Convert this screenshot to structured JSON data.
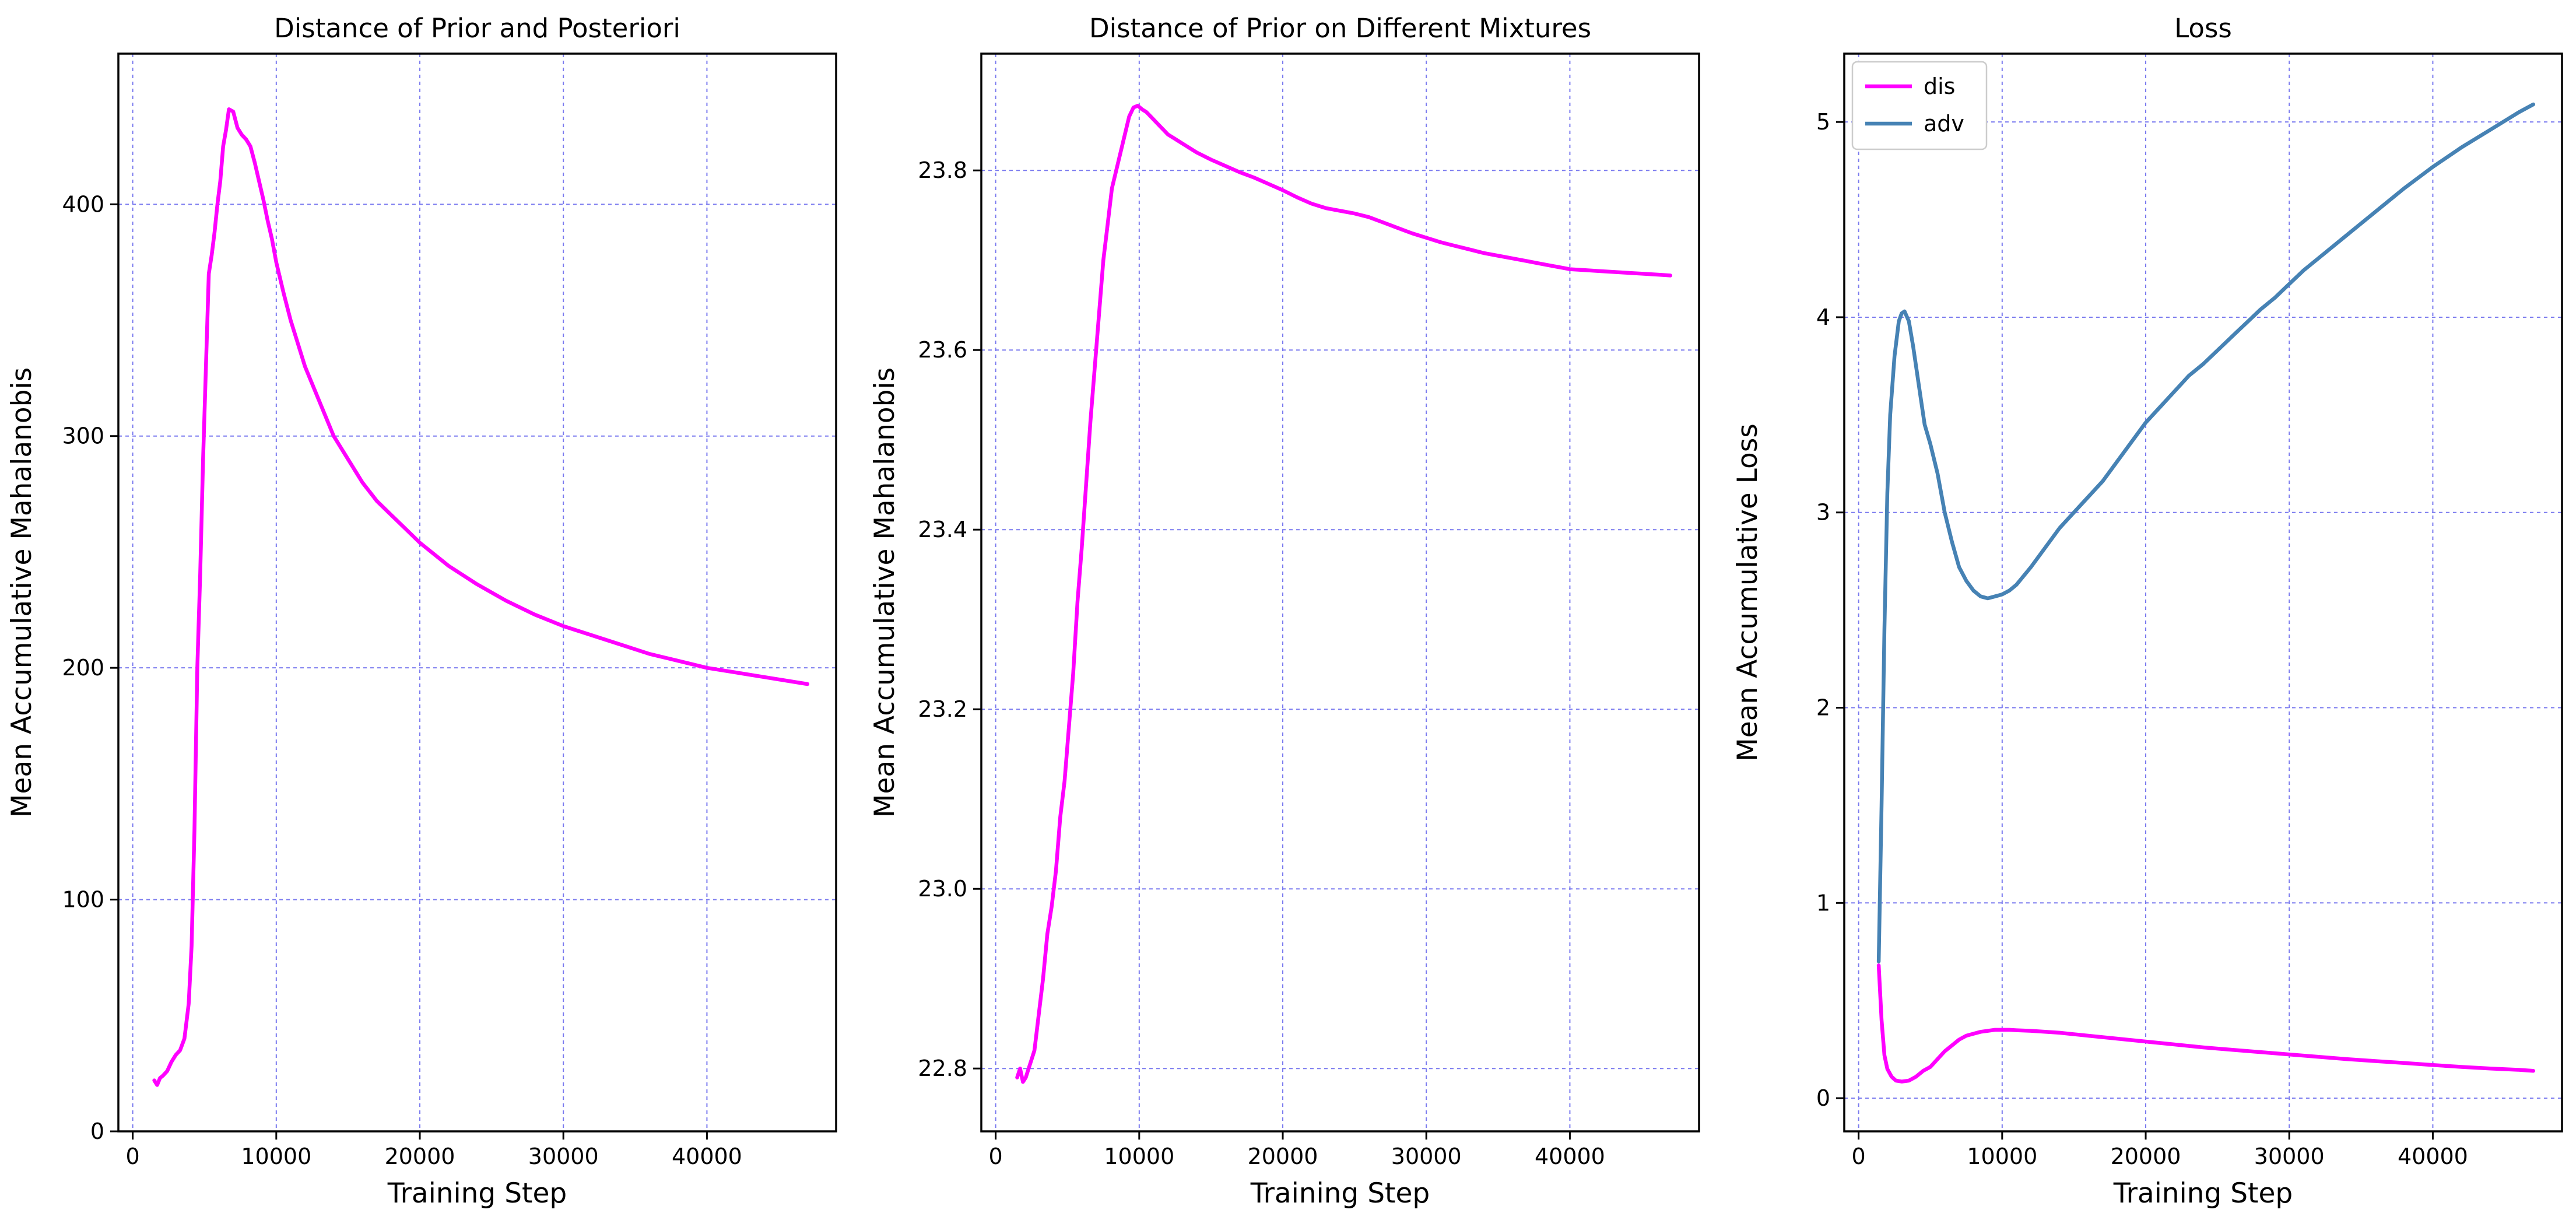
{
  "colors": {
    "magenta": "#ff00ff",
    "steelblue": "#4682b4",
    "grid": "#7b7bef"
  },
  "chart_data": [
    {
      "type": "line",
      "title": "Distance of Prior and Posteriori",
      "xlabel": "Training Step",
      "ylabel": "Mean Accumulative Mahalanobis",
      "xlim": [
        -1000,
        49000
      ],
      "ylim": [
        0,
        465
      ],
      "xticks": [
        0,
        10000,
        20000,
        30000,
        40000
      ],
      "xtick_labels": [
        "0",
        "10000",
        "20000",
        "30000",
        "40000"
      ],
      "yticks": [
        0,
        100,
        200,
        300,
        400
      ],
      "ytick_labels": [
        "0",
        "100",
        "200",
        "300",
        "400"
      ],
      "grid": true,
      "series": [
        {
          "color": "#ff00ff",
          "x": [
            1500,
            1700,
            1900,
            2100,
            2400,
            2700,
            3000,
            3300,
            3600,
            3900,
            4100,
            4300,
            4500,
            4700,
            4900,
            5100,
            5300,
            5500,
            5700,
            5900,
            6100,
            6300,
            6500,
            6700,
            7000,
            7300,
            7600,
            7900,
            8200,
            8500,
            8800,
            9100,
            9400,
            9700,
            10000,
            10500,
            11000,
            11500,
            12000,
            13000,
            14000,
            15000,
            16000,
            17000,
            18000,
            19000,
            20000,
            22000,
            24000,
            26000,
            28000,
            30000,
            32000,
            34000,
            36000,
            38000,
            40000,
            42000,
            44000,
            46000,
            47000
          ],
          "y": [
            22,
            20,
            23,
            24,
            26,
            30,
            33,
            35,
            40,
            55,
            80,
            130,
            200,
            240,
            290,
            330,
            370,
            378,
            388,
            400,
            410,
            425,
            432,
            441,
            440,
            433,
            430,
            428,
            425,
            418,
            410,
            402,
            393,
            385,
            375,
            362,
            350,
            340,
            330,
            315,
            300,
            290,
            280,
            272,
            266,
            260,
            254,
            244,
            236,
            229,
            223,
            218,
            214,
            210,
            206,
            203,
            200,
            198,
            196,
            194,
            193
          ]
        }
      ]
    },
    {
      "type": "line",
      "title": "Distance of Prior on Different Mixtures",
      "xlabel": "Training Step",
      "ylabel": "Mean Accumulative Mahalanobis",
      "xlim": [
        -1000,
        49000
      ],
      "ylim": [
        22.73,
        23.93
      ],
      "xticks": [
        0,
        10000,
        20000,
        30000,
        40000
      ],
      "xtick_labels": [
        "0",
        "10000",
        "20000",
        "30000",
        "40000"
      ],
      "yticks": [
        22.8,
        23.0,
        23.2,
        23.4,
        23.6,
        23.8
      ],
      "ytick_labels": [
        "22.8",
        "23.0",
        "23.2",
        "23.4",
        "23.6",
        "23.8"
      ],
      "grid": true,
      "series": [
        {
          "color": "#ff00ff",
          "x": [
            1500,
            1700,
            1900,
            2100,
            2300,
            2500,
            2700,
            3000,
            3300,
            3600,
            3900,
            4200,
            4500,
            4800,
            5100,
            5400,
            5700,
            6000,
            6300,
            6600,
            6900,
            7200,
            7500,
            7800,
            8100,
            8400,
            8700,
            9000,
            9300,
            9600,
            9900,
            10200,
            10500,
            10800,
            11100,
            11400,
            11700,
            12000,
            12500,
            13000,
            14000,
            15000,
            16000,
            17000,
            18000,
            19000,
            20000,
            21000,
            22000,
            23000,
            24000,
            25000,
            26000,
            27000,
            28000,
            29000,
            30000,
            31000,
            32000,
            33000,
            34000,
            35000,
            36000,
            37000,
            38000,
            39000,
            40000,
            41000,
            42000,
            43000,
            44000,
            45000,
            46000,
            47000
          ],
          "y": [
            22.79,
            22.8,
            22.785,
            22.79,
            22.8,
            22.81,
            22.82,
            22.86,
            22.9,
            22.95,
            22.98,
            23.02,
            23.08,
            23.12,
            23.18,
            23.24,
            23.32,
            23.38,
            23.45,
            23.52,
            23.58,
            23.64,
            23.7,
            23.74,
            23.78,
            23.8,
            23.82,
            23.84,
            23.86,
            23.87,
            23.872,
            23.868,
            23.865,
            23.86,
            23.855,
            23.85,
            23.845,
            23.84,
            23.835,
            23.83,
            23.82,
            23.812,
            23.805,
            23.798,
            23.792,
            23.785,
            23.778,
            23.77,
            23.763,
            23.758,
            23.755,
            23.752,
            23.748,
            23.742,
            23.736,
            23.73,
            23.725,
            23.72,
            23.716,
            23.712,
            23.708,
            23.705,
            23.702,
            23.699,
            23.696,
            23.693,
            23.69,
            23.689,
            23.688,
            23.687,
            23.686,
            23.685,
            23.684,
            23.683
          ]
        }
      ]
    },
    {
      "type": "line",
      "title": "Loss",
      "xlabel": "Training Step",
      "ylabel": "Mean Accumulative Loss",
      "xlim": [
        -1000,
        49000
      ],
      "ylim": [
        -0.17,
        5.35
      ],
      "xticks": [
        0,
        10000,
        20000,
        30000,
        40000
      ],
      "xtick_labels": [
        "0",
        "10000",
        "20000",
        "30000",
        "40000"
      ],
      "yticks": [
        0,
        1,
        2,
        3,
        4,
        5
      ],
      "ytick_labels": [
        "0",
        "1",
        "2",
        "3",
        "4",
        "5"
      ],
      "grid": true,
      "legend": "top-left",
      "series": [
        {
          "name": "dis",
          "color": "#ff00ff",
          "x": [
            1400,
            1600,
            1800,
            2000,
            2300,
            2600,
            3000,
            3500,
            4000,
            4500,
            5000,
            5500,
            6000,
            6500,
            7000,
            7500,
            8000,
            8500,
            9000,
            9500,
            10000,
            10500,
            11000,
            12000,
            13000,
            14000,
            16000,
            18000,
            20000,
            22000,
            24000,
            26000,
            28000,
            30000,
            32000,
            34000,
            36000,
            38000,
            40000,
            42000,
            44000,
            46000,
            47000
          ],
          "y": [
            0.68,
            0.4,
            0.22,
            0.15,
            0.11,
            0.09,
            0.085,
            0.09,
            0.11,
            0.14,
            0.16,
            0.2,
            0.24,
            0.27,
            0.3,
            0.32,
            0.33,
            0.34,
            0.345,
            0.35,
            0.35,
            0.35,
            0.348,
            0.345,
            0.34,
            0.335,
            0.32,
            0.305,
            0.29,
            0.275,
            0.26,
            0.248,
            0.236,
            0.224,
            0.212,
            0.2,
            0.19,
            0.18,
            0.17,
            0.16,
            0.152,
            0.145,
            0.14
          ]
        },
        {
          "name": "adv",
          "color": "#4682b4",
          "x": [
            1400,
            1600,
            1800,
            2000,
            2200,
            2500,
            2800,
            3000,
            3200,
            3500,
            3800,
            4200,
            4600,
            5000,
            5500,
            6000,
            6500,
            7000,
            7500,
            8000,
            8500,
            9000,
            9500,
            10000,
            10500,
            11000,
            12000,
            13000,
            14000,
            15000,
            16000,
            17000,
            18000,
            19000,
            20000,
            21000,
            22000,
            23000,
            24000,
            25000,
            26000,
            27000,
            28000,
            29000,
            30000,
            31000,
            32000,
            34000,
            36000,
            38000,
            40000,
            42000,
            44000,
            46000,
            47000
          ],
          "y": [
            0.7,
            1.5,
            2.4,
            3.1,
            3.5,
            3.8,
            3.98,
            4.02,
            4.03,
            3.98,
            3.85,
            3.65,
            3.45,
            3.35,
            3.2,
            3.0,
            2.85,
            2.72,
            2.65,
            2.6,
            2.57,
            2.56,
            2.57,
            2.58,
            2.6,
            2.63,
            2.72,
            2.82,
            2.92,
            3.0,
            3.08,
            3.16,
            3.26,
            3.36,
            3.46,
            3.54,
            3.62,
            3.7,
            3.76,
            3.83,
            3.9,
            3.97,
            4.04,
            4.1,
            4.17,
            4.24,
            4.3,
            4.42,
            4.54,
            4.66,
            4.77,
            4.87,
            4.96,
            5.05,
            5.09
          ]
        }
      ]
    }
  ]
}
